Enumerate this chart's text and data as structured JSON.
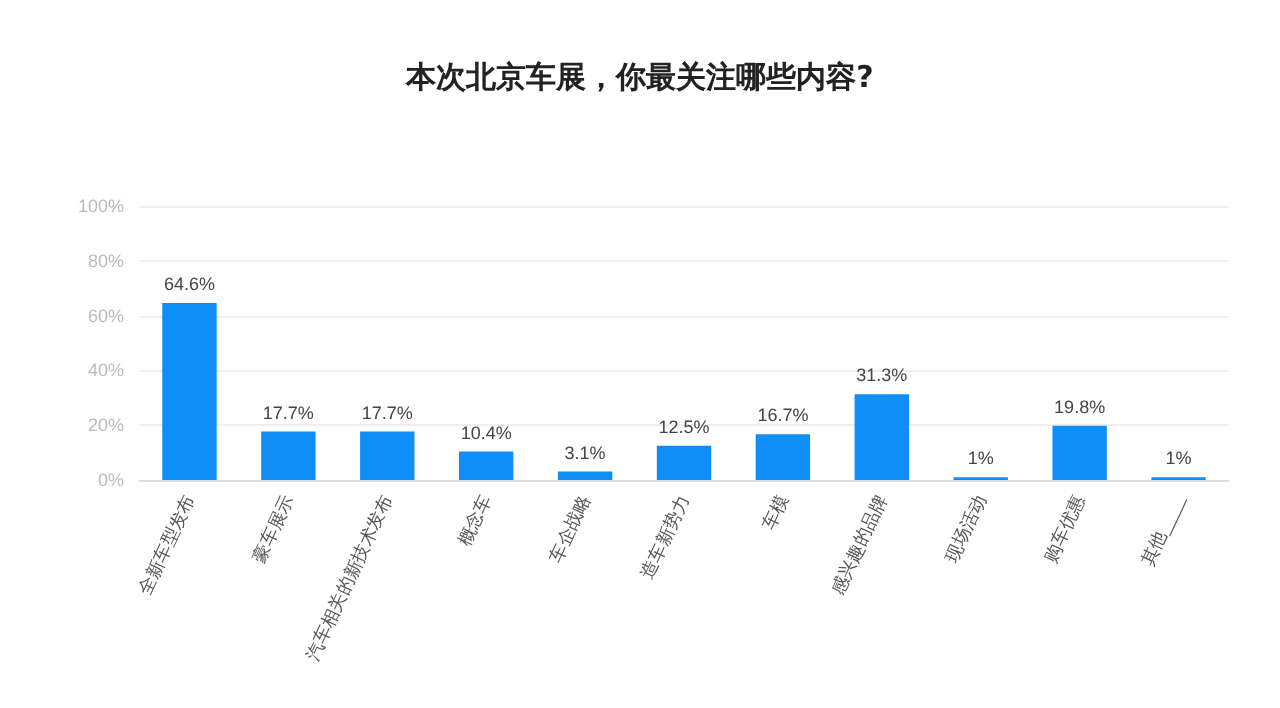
{
  "chart_data": {
    "type": "bar",
    "title": "本次北京车展，你最关注哪些内容?",
    "categories": [
      "全新车型发布",
      "豪车展示",
      "汽车相关的新技术发布",
      "概念车",
      "车企战略",
      "造车新势力",
      "车模",
      "感兴趣的品牌",
      "现场活动",
      "购车优惠",
      "其他____"
    ],
    "values": [
      64.6,
      17.7,
      17.7,
      10.4,
      3.1,
      12.5,
      16.7,
      31.3,
      1,
      19.8,
      1
    ],
    "value_labels": [
      "64.6%",
      "17.7%",
      "17.7%",
      "10.4%",
      "3.1%",
      "12.5%",
      "16.7%",
      "31.3%",
      "1%",
      "19.8%",
      "1%"
    ],
    "color": "#108ef7",
    "ylim": [
      0,
      100
    ],
    "yticks": [
      {
        "value": 0,
        "label": "0%"
      },
      {
        "value": 20,
        "label": "20%"
      },
      {
        "value": 40,
        "label": "40%"
      },
      {
        "value": 60,
        "label": "60%"
      },
      {
        "value": 80,
        "label": "80%"
      },
      {
        "value": 100,
        "label": "100%"
      }
    ],
    "grid": "y"
  }
}
